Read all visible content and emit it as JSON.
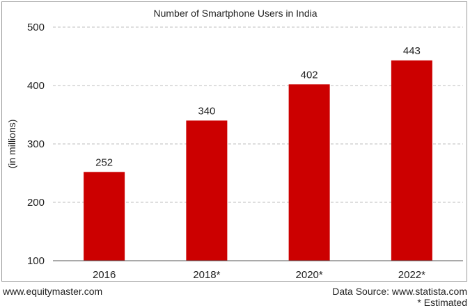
{
  "chart_data": {
    "type": "bar",
    "title": "Number of Smartphone Users in India",
    "xlabel": "",
    "ylabel": "(in millions)",
    "categories": [
      "2016",
      "2018*",
      "2020*",
      "2022*"
    ],
    "values": [
      252,
      340,
      402,
      443
    ],
    "data_labels": [
      "252",
      "340",
      "402",
      "443"
    ],
    "ylim": [
      100,
      500
    ],
    "yticks": [
      100,
      200,
      300,
      400,
      500
    ],
    "ytick_labels": [
      "100",
      "200",
      "300",
      "400",
      "500"
    ],
    "grid": true,
    "legend": "none",
    "bar_color": "#cc0000"
  },
  "footer": {
    "website": "www.equitymaster.com",
    "source": "Data Source: www.statista.com",
    "note": "* Estimated"
  }
}
